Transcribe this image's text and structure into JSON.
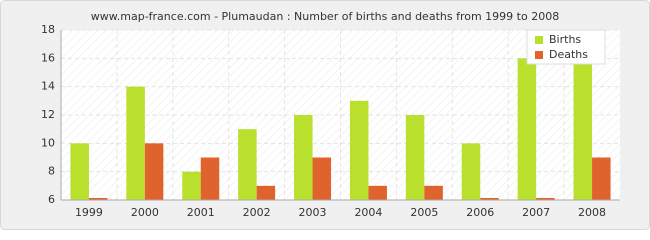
{
  "chart_data": {
    "type": "bar",
    "title": "www.map-france.com - Plumaudan : Number of births and deaths from 1999 to 2008",
    "categories": [
      "1999",
      "2000",
      "2001",
      "2002",
      "2003",
      "2004",
      "2005",
      "2006",
      "2007",
      "2008"
    ],
    "series": [
      {
        "name": "Births",
        "color": "#b8e02c",
        "values": [
          10,
          14,
          8,
          11,
          12,
          13,
          12,
          10,
          16,
          18
        ]
      },
      {
        "name": "Deaths",
        "color": "#e0622c",
        "values": [
          6,
          10,
          9,
          7,
          9,
          7,
          7,
          6,
          6,
          9
        ]
      }
    ],
    "ylim": [
      6,
      18
    ],
    "yticks": [
      6,
      8,
      10,
      12,
      14,
      16,
      18
    ],
    "grid": true,
    "legend": "top-right"
  }
}
